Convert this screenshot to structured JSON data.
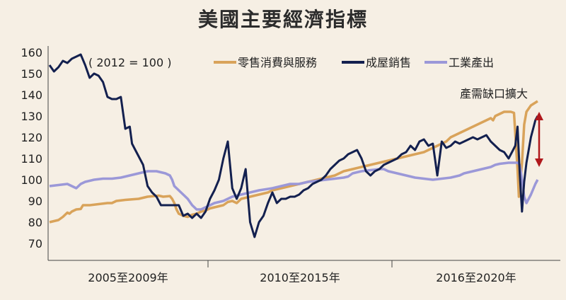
{
  "title": "美國主要經濟指標",
  "chart_data": {
    "type": "line",
    "title": "美國主要經濟指標",
    "base_note": "( 2012 = 100 )",
    "annotation": "產需缺口擴大",
    "colors": {
      "retail": "#d9a35a",
      "housing": "#13204f",
      "industry": "#9b98d8",
      "arrow": "#b0181c",
      "background": "#f6efe4"
    },
    "ylim": [
      63,
      163
    ],
    "yticks": [
      70,
      80,
      90,
      100,
      110,
      120,
      130,
      140,
      150,
      160
    ],
    "period_labels": [
      "2005至2009年",
      "2010至2015年",
      "2016至2020年"
    ],
    "period_bounds": [
      0,
      0.3,
      0.66,
      1.0
    ],
    "legend": [
      "零售消費與服務",
      "成屋銷售",
      "工業產出"
    ],
    "series": [
      {
        "name": "零售消費與服務",
        "key": "retail",
        "values": [
          [
            0,
            80
          ],
          [
            0.02,
            81
          ],
          [
            0.03,
            82.5
          ],
          [
            0.04,
            84.5
          ],
          [
            0.045,
            84
          ],
          [
            0.05,
            85
          ],
          [
            0.06,
            86
          ],
          [
            0.07,
            86.2
          ],
          [
            0.075,
            88
          ],
          [
            0.09,
            88
          ],
          [
            0.11,
            88.5
          ],
          [
            0.13,
            89
          ],
          [
            0.14,
            89
          ],
          [
            0.15,
            90
          ],
          [
            0.17,
            90.5
          ],
          [
            0.2,
            91
          ],
          [
            0.22,
            92
          ],
          [
            0.245,
            92.5
          ],
          [
            0.255,
            92
          ],
          [
            0.27,
            92.3
          ],
          [
            0.275,
            91
          ],
          [
            0.28,
            89
          ],
          [
            0.285,
            86
          ],
          [
            0.29,
            84
          ],
          [
            0.3,
            83
          ],
          [
            0.31,
            82.5
          ],
          [
            0.32,
            83.5
          ],
          [
            0.33,
            84
          ],
          [
            0.34,
            85
          ],
          [
            0.35,
            85.5
          ],
          [
            0.36,
            86.5
          ],
          [
            0.37,
            87
          ],
          [
            0.38,
            87.5
          ],
          [
            0.39,
            88
          ],
          [
            0.4,
            89.5
          ],
          [
            0.41,
            90
          ],
          [
            0.42,
            89
          ],
          [
            0.43,
            91
          ],
          [
            0.45,
            92
          ],
          [
            0.47,
            93
          ],
          [
            0.49,
            94
          ],
          [
            0.5,
            95
          ],
          [
            0.52,
            96
          ],
          [
            0.54,
            97
          ],
          [
            0.56,
            98
          ],
          [
            0.58,
            99
          ],
          [
            0.6,
            100
          ],
          [
            0.62,
            101
          ],
          [
            0.64,
            102
          ],
          [
            0.66,
            104
          ],
          [
            0.68,
            105
          ],
          [
            0.7,
            106
          ],
          [
            0.72,
            107
          ],
          [
            0.74,
            108
          ],
          [
            0.76,
            109
          ],
          [
            0.78,
            110
          ],
          [
            0.8,
            111
          ],
          [
            0.82,
            112
          ],
          [
            0.84,
            113
          ],
          [
            0.86,
            115
          ],
          [
            0.88,
            117
          ],
          [
            0.89,
            118
          ],
          [
            0.9,
            120
          ],
          [
            0.91,
            121
          ],
          [
            0.92,
            122
          ],
          [
            0.93,
            123
          ],
          [
            0.94,
            124
          ],
          [
            0.95,
            125
          ],
          [
            0.96,
            126
          ],
          [
            0.97,
            127
          ],
          [
            0.98,
            128
          ],
          [
            0.99,
            129
          ],
          [
            0.995,
            128
          ],
          [
            1.0,
            130
          ],
          [
            1.01,
            131
          ],
          [
            1.02,
            132
          ],
          [
            1.035,
            132
          ],
          [
            1.042,
            131.5
          ],
          [
            1.046,
            118
          ],
          [
            1.05,
            105
          ],
          [
            1.053,
            92
          ],
          [
            1.06,
            108
          ],
          [
            1.065,
            126
          ],
          [
            1.07,
            132
          ],
          [
            1.08,
            135
          ],
          [
            1.095,
            137
          ]
        ]
      },
      {
        "name": "成屋銷售",
        "key": "housing",
        "values": [
          [
            0,
            154
          ],
          [
            0.01,
            151
          ],
          [
            0.02,
            153
          ],
          [
            0.03,
            156
          ],
          [
            0.04,
            155
          ],
          [
            0.05,
            157
          ],
          [
            0.06,
            158
          ],
          [
            0.07,
            159
          ],
          [
            0.08,
            154
          ],
          [
            0.09,
            148
          ],
          [
            0.1,
            150
          ],
          [
            0.11,
            149
          ],
          [
            0.12,
            146
          ],
          [
            0.13,
            139
          ],
          [
            0.14,
            138
          ],
          [
            0.15,
            138
          ],
          [
            0.16,
            139
          ],
          [
            0.17,
            124
          ],
          [
            0.18,
            125
          ],
          [
            0.185,
            117
          ],
          [
            0.19,
            115
          ],
          [
            0.2,
            111
          ],
          [
            0.21,
            107
          ],
          [
            0.22,
            97
          ],
          [
            0.23,
            94
          ],
          [
            0.24,
            92
          ],
          [
            0.25,
            88
          ],
          [
            0.26,
            88
          ],
          [
            0.27,
            88
          ],
          [
            0.28,
            88
          ],
          [
            0.29,
            88
          ],
          [
            0.3,
            83
          ],
          [
            0.31,
            84
          ],
          [
            0.32,
            82
          ],
          [
            0.33,
            84
          ],
          [
            0.34,
            82
          ],
          [
            0.35,
            85
          ],
          [
            0.36,
            91
          ],
          [
            0.37,
            95
          ],
          [
            0.38,
            100
          ],
          [
            0.39,
            110
          ],
          [
            0.4,
            118
          ],
          [
            0.41,
            96
          ],
          [
            0.42,
            91
          ],
          [
            0.43,
            96
          ],
          [
            0.44,
            105
          ],
          [
            0.45,
            80
          ],
          [
            0.46,
            73
          ],
          [
            0.47,
            80
          ],
          [
            0.48,
            83
          ],
          [
            0.49,
            89
          ],
          [
            0.5,
            94
          ],
          [
            0.51,
            89
          ],
          [
            0.52,
            91
          ],
          [
            0.53,
            91
          ],
          [
            0.54,
            92
          ],
          [
            0.55,
            92
          ],
          [
            0.56,
            93
          ],
          [
            0.57,
            95
          ],
          [
            0.58,
            96
          ],
          [
            0.59,
            98
          ],
          [
            0.6,
            99
          ],
          [
            0.61,
            100
          ],
          [
            0.62,
            102
          ],
          [
            0.63,
            105
          ],
          [
            0.64,
            107
          ],
          [
            0.65,
            109
          ],
          [
            0.66,
            110
          ],
          [
            0.67,
            112
          ],
          [
            0.68,
            113
          ],
          [
            0.69,
            114
          ],
          [
            0.7,
            110
          ],
          [
            0.71,
            104
          ],
          [
            0.72,
            102
          ],
          [
            0.73,
            104
          ],
          [
            0.74,
            105
          ],
          [
            0.75,
            107
          ],
          [
            0.76,
            108
          ],
          [
            0.77,
            109
          ],
          [
            0.78,
            110
          ],
          [
            0.79,
            112
          ],
          [
            0.8,
            113
          ],
          [
            0.81,
            116
          ],
          [
            0.82,
            114
          ],
          [
            0.83,
            118
          ],
          [
            0.84,
            119
          ],
          [
            0.85,
            116
          ],
          [
            0.86,
            117
          ],
          [
            0.87,
            102
          ],
          [
            0.88,
            118
          ],
          [
            0.89,
            115
          ],
          [
            0.9,
            116
          ],
          [
            0.91,
            118
          ],
          [
            0.92,
            117
          ],
          [
            0.93,
            118
          ],
          [
            0.94,
            119
          ],
          [
            0.95,
            120
          ],
          [
            0.96,
            119
          ],
          [
            0.97,
            120
          ],
          [
            0.98,
            121
          ],
          [
            0.99,
            118
          ],
          [
            1.0,
            116
          ],
          [
            1.01,
            114
          ],
          [
            1.02,
            113
          ],
          [
            1.03,
            110
          ],
          [
            1.04,
            114
          ],
          [
            1.045,
            116
          ],
          [
            1.05,
            125
          ],
          [
            1.055,
            103
          ],
          [
            1.06,
            85
          ],
          [
            1.065,
            99
          ],
          [
            1.07,
            108
          ],
          [
            1.08,
            120
          ],
          [
            1.09,
            128
          ],
          [
            1.095,
            130
          ]
        ]
      },
      {
        "name": "工業產出",
        "key": "industry",
        "values": [
          [
            0,
            97
          ],
          [
            0.02,
            97.5
          ],
          [
            0.04,
            98
          ],
          [
            0.05,
            97
          ],
          [
            0.06,
            96
          ],
          [
            0.07,
            98
          ],
          [
            0.08,
            99
          ],
          [
            0.1,
            100
          ],
          [
            0.12,
            100.5
          ],
          [
            0.14,
            100.5
          ],
          [
            0.16,
            101
          ],
          [
            0.18,
            102
          ],
          [
            0.2,
            103
          ],
          [
            0.22,
            104
          ],
          [
            0.24,
            104
          ],
          [
            0.25,
            103.5
          ],
          [
            0.26,
            103
          ],
          [
            0.27,
            102
          ],
          [
            0.275,
            100
          ],
          [
            0.28,
            97
          ],
          [
            0.29,
            95
          ],
          [
            0.3,
            93
          ],
          [
            0.31,
            91
          ],
          [
            0.32,
            88
          ],
          [
            0.33,
            86
          ],
          [
            0.34,
            86
          ],
          [
            0.35,
            87
          ],
          [
            0.37,
            89
          ],
          [
            0.39,
            90
          ],
          [
            0.41,
            92
          ],
          [
            0.43,
            93
          ],
          [
            0.45,
            94
          ],
          [
            0.47,
            95
          ],
          [
            0.5,
            96
          ],
          [
            0.52,
            97
          ],
          [
            0.54,
            98
          ],
          [
            0.56,
            98
          ],
          [
            0.58,
            99
          ],
          [
            0.6,
            99.5
          ],
          [
            0.62,
            100
          ],
          [
            0.64,
            100.5
          ],
          [
            0.66,
            101
          ],
          [
            0.67,
            101.5
          ],
          [
            0.68,
            103
          ],
          [
            0.7,
            104
          ],
          [
            0.72,
            104.5
          ],
          [
            0.74,
            105
          ],
          [
            0.75,
            105
          ],
          [
            0.76,
            104
          ],
          [
            0.78,
            103
          ],
          [
            0.8,
            102
          ],
          [
            0.82,
            101
          ],
          [
            0.84,
            100.5
          ],
          [
            0.86,
            100
          ],
          [
            0.88,
            100.5
          ],
          [
            0.9,
            101
          ],
          [
            0.92,
            102
          ],
          [
            0.93,
            103
          ],
          [
            0.95,
            104
          ],
          [
            0.97,
            105
          ],
          [
            0.99,
            106
          ],
          [
            1.0,
            107
          ],
          [
            1.01,
            107.5
          ],
          [
            1.03,
            108
          ],
          [
            1.05,
            108
          ],
          [
            1.055,
            107
          ],
          [
            1.06,
            100
          ],
          [
            1.065,
            92
          ],
          [
            1.07,
            89
          ],
          [
            1.08,
            93
          ],
          [
            1.09,
            98
          ],
          [
            1.095,
            100
          ]
        ]
      }
    ]
  }
}
